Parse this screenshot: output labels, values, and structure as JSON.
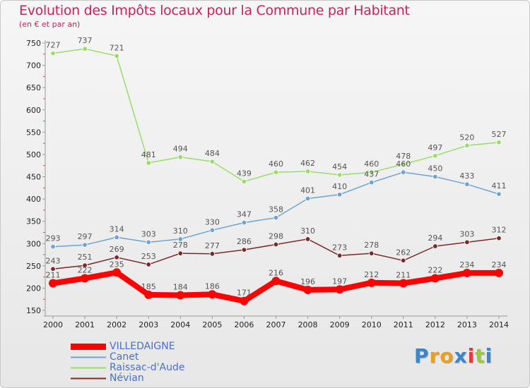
{
  "header": {
    "title": "Evolution des Impôts locaux pour la Commune par Habitant",
    "subtitle": "(en € et par an)"
  },
  "logo": {
    "text": "Proxiti",
    "letters": [
      {
        "ch": "P",
        "color": "#3a86c8"
      },
      {
        "ch": "r",
        "color": "#e8a020"
      },
      {
        "ch": "o",
        "color": "#e8a020"
      },
      {
        "ch": "x",
        "color": "#3a86c8"
      },
      {
        "ch": "i",
        "color": "#e83838"
      },
      {
        "ch": "t",
        "color": "#9acd32"
      },
      {
        "ch": "i",
        "color": "#3a86c8"
      }
    ]
  },
  "chart_data": {
    "type": "line",
    "title": "Evolution des Impôts locaux pour la Commune par Habitant",
    "subtitle": "(en € et par an)",
    "x": [
      2000,
      2001,
      2002,
      2003,
      2004,
      2005,
      2006,
      2007,
      2008,
      2009,
      2010,
      2011,
      2012,
      2013,
      2014
    ],
    "ylim": [
      150,
      750
    ],
    "yticks": [
      150,
      200,
      250,
      300,
      350,
      400,
      450,
      500,
      550,
      600,
      650,
      700,
      750
    ],
    "grid": false,
    "legend_position": "bottom-left",
    "series": [
      {
        "name": "VILLEDAIGNE",
        "color": "#ff0000",
        "width": 8,
        "values": [
          211,
          222,
          235,
          185,
          184,
          186,
          171,
          216,
          196,
          197,
          212,
          211,
          222,
          234,
          234
        ]
      },
      {
        "name": "Canet",
        "color": "#6fa3d2",
        "width": 1.5,
        "values": [
          293,
          297,
          314,
          303,
          310,
          330,
          347,
          358,
          401,
          410,
          437,
          460,
          450,
          433,
          411
        ]
      },
      {
        "name": "Raissac-d'Aude",
        "color": "#99dd66",
        "width": 1.5,
        "values": [
          727,
          737,
          721,
          481,
          494,
          484,
          439,
          460,
          462,
          454,
          460,
          478,
          497,
          520,
          527
        ]
      },
      {
        "name": "Névian",
        "color": "#7a2a2a",
        "width": 1.5,
        "values": [
          243,
          251,
          269,
          253,
          278,
          277,
          286,
          298,
          310,
          273,
          278,
          262,
          294,
          303,
          312
        ]
      }
    ]
  }
}
